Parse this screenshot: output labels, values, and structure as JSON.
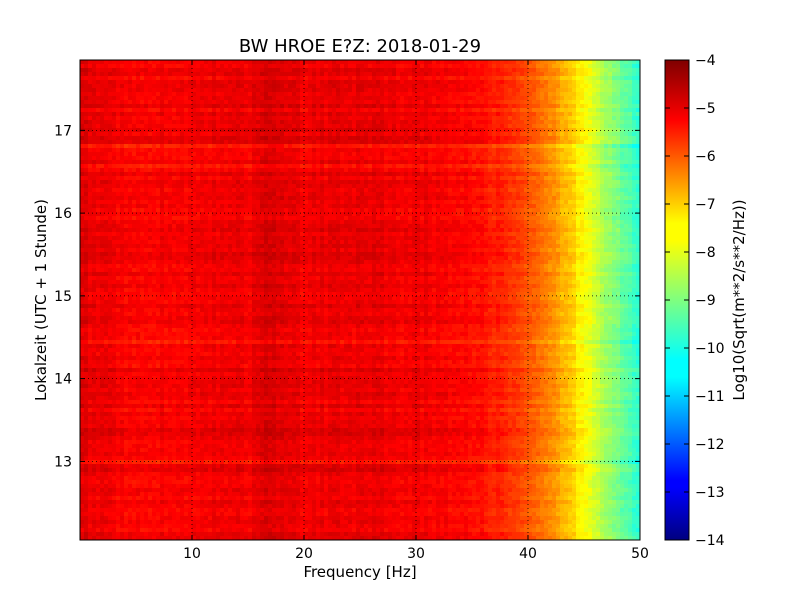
{
  "chart_data": {
    "type": "heatmap",
    "title": "BW HROE E?Z: 2018-01-29",
    "xlabel": "Frequency [Hz]",
    "ylabel": "Lokalzeit (UTC + 1 Stunde)",
    "xlim": [
      0,
      50
    ],
    "ylim": [
      17.85,
      12.05
    ],
    "x_ticks": [
      10,
      20,
      30,
      40,
      50
    ],
    "y_ticks": [
      13,
      14,
      15,
      16,
      17
    ],
    "grid": true,
    "colormap": "jet",
    "colorbar": {
      "label": "Log10(Sqrt(m**2/s**2/Hz))",
      "min": -14,
      "max": -4,
      "ticks": [
        -4,
        -5,
        -6,
        -7,
        -8,
        -9,
        -10,
        -11,
        -12,
        -13,
        -14
      ]
    },
    "spectrum_profile": {
      "frequency_hz": [
        0,
        2,
        5,
        10,
        15,
        17,
        20,
        25,
        30,
        35,
        38,
        40,
        42,
        44,
        46,
        48,
        50
      ],
      "log10_amplitude": [
        -4.9,
        -5.1,
        -5.2,
        -5.15,
        -5.1,
        -4.8,
        -5.1,
        -5.0,
        -5.1,
        -5.3,
        -5.6,
        -6.0,
        -6.6,
        -7.3,
        -8.2,
        -9.0,
        -9.8
      ]
    }
  }
}
